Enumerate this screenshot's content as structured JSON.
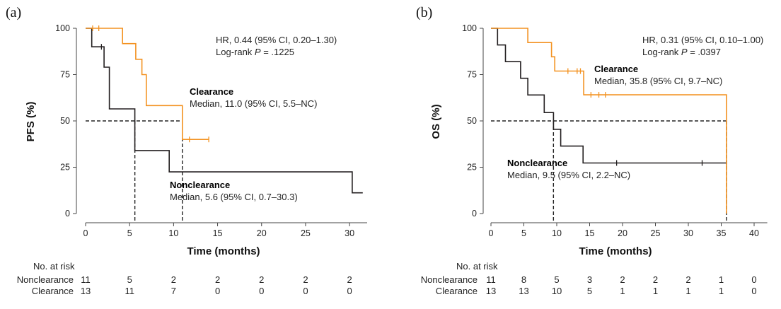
{
  "colors": {
    "clearance": "#f39221",
    "nonclearance": "#231f20",
    "axis": "#444444"
  },
  "chart_data": [
    {
      "panel_label": "(a)",
      "type": "line",
      "subtype": "kaplan-meier",
      "ylabel": "PFS (%)",
      "xlabel": "Time (months)",
      "xlim": [
        0,
        32
      ],
      "ylim": [
        0,
        100
      ],
      "xticks": [
        0,
        5,
        10,
        15,
        20,
        25,
        30
      ],
      "yticks": [
        0,
        25,
        50,
        75,
        100
      ],
      "stats_line1": "HR, 0.44 (95% CI, 0.20–1.30)",
      "stats_line2_prefix": "Log-rank ",
      "stats_line2_italic": "P",
      "stats_line2_suffix": " = .1225",
      "series": [
        {
          "name": "Nonclearance",
          "key": "nonclearance",
          "median_text": "Median, 5.6 (95% CI, 0.7–30.3)",
          "median": 5.6,
          "steps": [
            [
              0,
              100
            ],
            [
              0.7,
              100
            ],
            [
              0.7,
              90
            ],
            [
              2.1,
              90
            ],
            [
              2.1,
              79
            ],
            [
              2.7,
              79
            ],
            [
              2.7,
              56.5
            ],
            [
              5.6,
              56.5
            ],
            [
              5.6,
              34
            ],
            [
              9.5,
              34
            ],
            [
              9.5,
              22.5
            ],
            [
              30.3,
              22.5
            ],
            [
              30.3,
              11.2
            ],
            [
              31.5,
              11.2
            ]
          ],
          "censors": [
            [
              1.8,
              90
            ]
          ]
        },
        {
          "name": "Clearance",
          "key": "clearance",
          "median_text": "Median, 11.0 (95% CI, 5.5–NC)",
          "median": 11.0,
          "steps": [
            [
              0,
              100
            ],
            [
              4.2,
              100
            ],
            [
              4.2,
              91.7
            ],
            [
              5.7,
              91.7
            ],
            [
              5.7,
              83.3
            ],
            [
              6.4,
              83.3
            ],
            [
              6.4,
              75
            ],
            [
              6.9,
              75
            ],
            [
              6.9,
              58.3
            ],
            [
              11.0,
              58.3
            ],
            [
              11.0,
              40
            ],
            [
              14.0,
              40
            ]
          ],
          "censors": [
            [
              0.8,
              100
            ],
            [
              1.5,
              100
            ],
            [
              11.8,
              40
            ],
            [
              14.0,
              40
            ]
          ]
        }
      ],
      "risk_table": {
        "header": "No. at risk",
        "rows": [
          {
            "label": "Nonclearance",
            "values": [
              "11",
              "5",
              "2",
              "2",
              "2",
              "2",
              "2"
            ]
          },
          {
            "label": "Clearance",
            "values": [
              "13",
              "11",
              "7",
              "0",
              "0",
              "0",
              "0"
            ]
          }
        ]
      }
    },
    {
      "panel_label": "(b)",
      "type": "line",
      "subtype": "kaplan-meier",
      "ylabel": "OS (%)",
      "xlabel": "Time (months)",
      "xlim": [
        0,
        42
      ],
      "ylim": [
        0,
        100
      ],
      "xticks": [
        0,
        5,
        10,
        15,
        20,
        25,
        30,
        35,
        40
      ],
      "yticks": [
        0,
        25,
        50,
        75,
        100
      ],
      "stats_line1": "HR, 0.31 (95% CI, 0.10–1.00)",
      "stats_line2_prefix": "Log-rank ",
      "stats_line2_italic": "P",
      "stats_line2_suffix": " = .0397",
      "series": [
        {
          "name": "Nonclearance",
          "key": "nonclearance",
          "median_text": "Median, 9.5 (95% CI, 2.2–NC)",
          "median": 9.5,
          "steps": [
            [
              0,
              100
            ],
            [
              1,
              100
            ],
            [
              1,
              91
            ],
            [
              2.2,
              91
            ],
            [
              2.2,
              82
            ],
            [
              4.5,
              82
            ],
            [
              4.5,
              73
            ],
            [
              5.6,
              73
            ],
            [
              5.6,
              64
            ],
            [
              8.1,
              64
            ],
            [
              8.1,
              54.5
            ],
            [
              9.5,
              54.5
            ],
            [
              9.5,
              45.5
            ],
            [
              10.6,
              45.5
            ],
            [
              10.6,
              36.4
            ],
            [
              14,
              36.4
            ],
            [
              14,
              27.3
            ],
            [
              35.8,
              27.3
            ]
          ],
          "censors": [
            [
              19.1,
              27.3
            ],
            [
              32.1,
              27.3
            ],
            [
              35.8,
              27.3
            ]
          ]
        },
        {
          "name": "Clearance",
          "key": "clearance",
          "median_text": "Median, 35.8 (95% CI, 9.7–NC)",
          "median": 35.8,
          "steps": [
            [
              0,
              100
            ],
            [
              5.6,
              100
            ],
            [
              5.6,
              92.3
            ],
            [
              9.2,
              92.3
            ],
            [
              9.2,
              84.6
            ],
            [
              9.7,
              84.6
            ],
            [
              9.7,
              76.9
            ],
            [
              14.1,
              76.9
            ],
            [
              14.1,
              64.1
            ],
            [
              35.8,
              64.1
            ],
            [
              35.8,
              0
            ]
          ],
          "censors": [
            [
              11.7,
              76.9
            ],
            [
              13.1,
              76.9
            ],
            [
              13.6,
              76.9
            ],
            [
              15.2,
              64.1
            ],
            [
              16.4,
              64.1
            ],
            [
              17.4,
              64.1
            ]
          ]
        }
      ],
      "risk_table": {
        "header": "No. at risk",
        "rows": [
          {
            "label": "Nonclearance",
            "values": [
              "11",
              "8",
              "5",
              "3",
              "2",
              "2",
              "2",
              "1",
              "0"
            ]
          },
          {
            "label": "Clearance",
            "values": [
              "13",
              "13",
              "10",
              "5",
              "1",
              "1",
              "1",
              "1",
              "0"
            ]
          }
        ]
      }
    }
  ]
}
